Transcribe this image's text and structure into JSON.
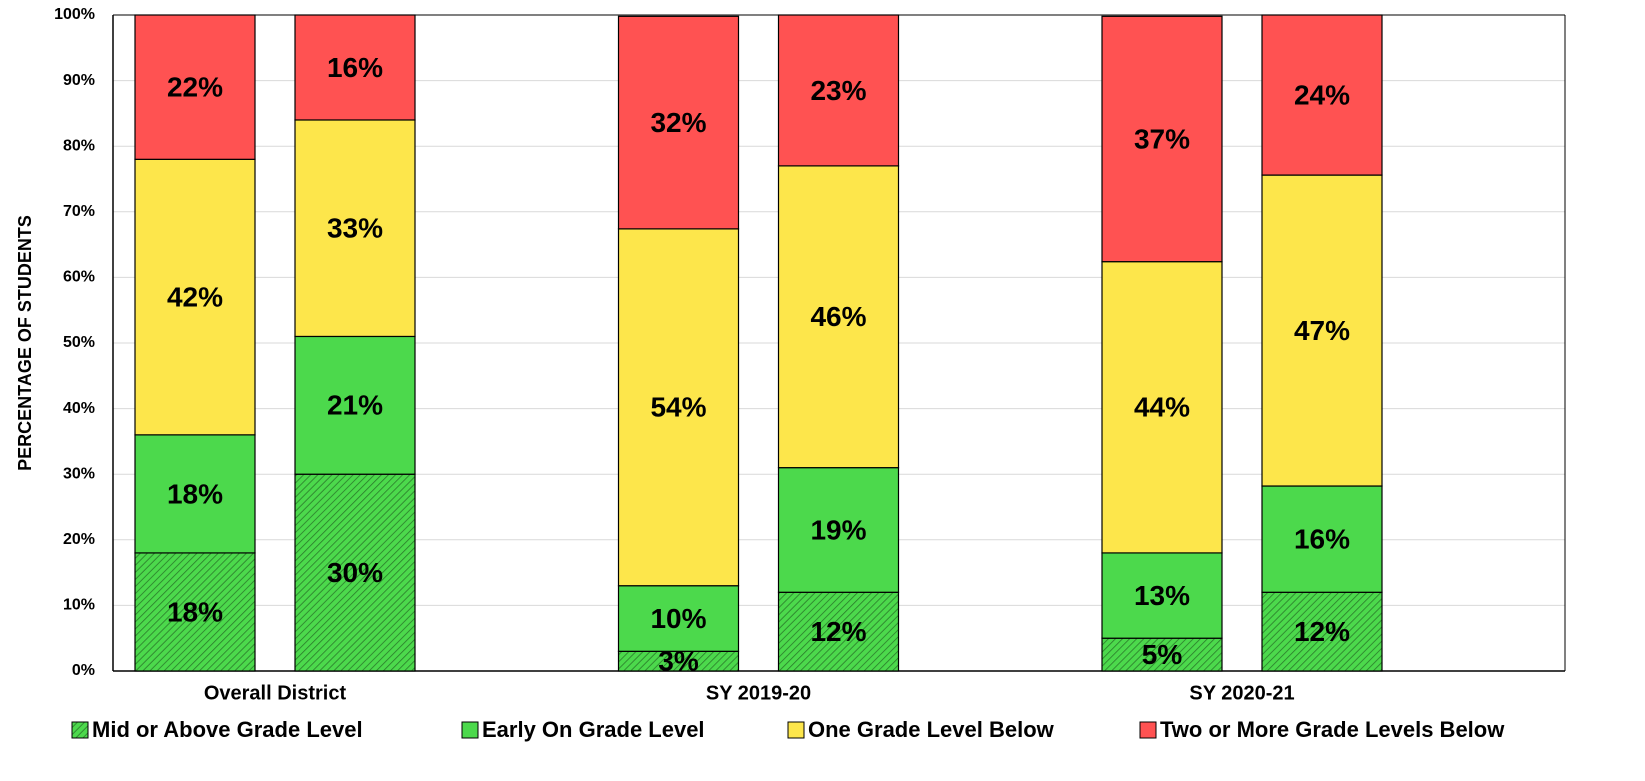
{
  "chart_data": {
    "type": "stacked_bar",
    "y_axis_label": "PERCENTAGE OF STUDENTS",
    "categories": [
      "Overall District",
      null,
      "SY 2019-20",
      null,
      "SY 2020-21",
      null
    ],
    "series": [
      {
        "name": "Mid or Above Grade Level",
        "color": "#4cd94c",
        "pattern": "hatch",
        "values": [
          18,
          30,
          3,
          12,
          5,
          12
        ],
        "value_labels": [
          "18%",
          "30%",
          "3%",
          "12%",
          "5%",
          "12%"
        ]
      },
      {
        "name": "Early On Grade Level",
        "color": "#4cd94c",
        "values": [
          18,
          21,
          10,
          19,
          13,
          16.2
        ],
        "value_labels": [
          "18%",
          "21%",
          "10%",
          "19%",
          "13%",
          "16%"
        ]
      },
      {
        "name": "One Grade Level Below",
        "color": "#fde64b",
        "values": [
          42,
          33,
          54.4,
          46,
          44.4,
          47.4
        ],
        "value_labels": [
          "42%",
          "33%",
          "54%",
          "46%",
          "44%",
          "47%"
        ]
      },
      {
        "name": "Two or More Grade Levels Below",
        "color": "#ff5252",
        "values": [
          22,
          16,
          32.4,
          23,
          37.4,
          24.4
        ],
        "value_labels": [
          "22%",
          "16%",
          "32%",
          "23%",
          "37%",
          "24%"
        ]
      }
    ],
    "ylim": [
      0,
      100
    ],
    "yticks": [
      {
        "value": 0,
        "label": "0%"
      },
      {
        "value": 10,
        "label": "10%"
      },
      {
        "value": 20,
        "label": "20%"
      },
      {
        "value": 30,
        "label": "30%"
      },
      {
        "value": 40,
        "label": "40%"
      },
      {
        "value": 50,
        "label": "50%"
      },
      {
        "value": 60,
        "label": "60%"
      },
      {
        "value": 70,
        "label": "70%"
      },
      {
        "value": 80,
        "label": "80%"
      },
      {
        "value": 90,
        "label": "90%"
      },
      {
        "value": 100,
        "label": "100%"
      }
    ],
    "grid": true,
    "legend": "bottom"
  }
}
